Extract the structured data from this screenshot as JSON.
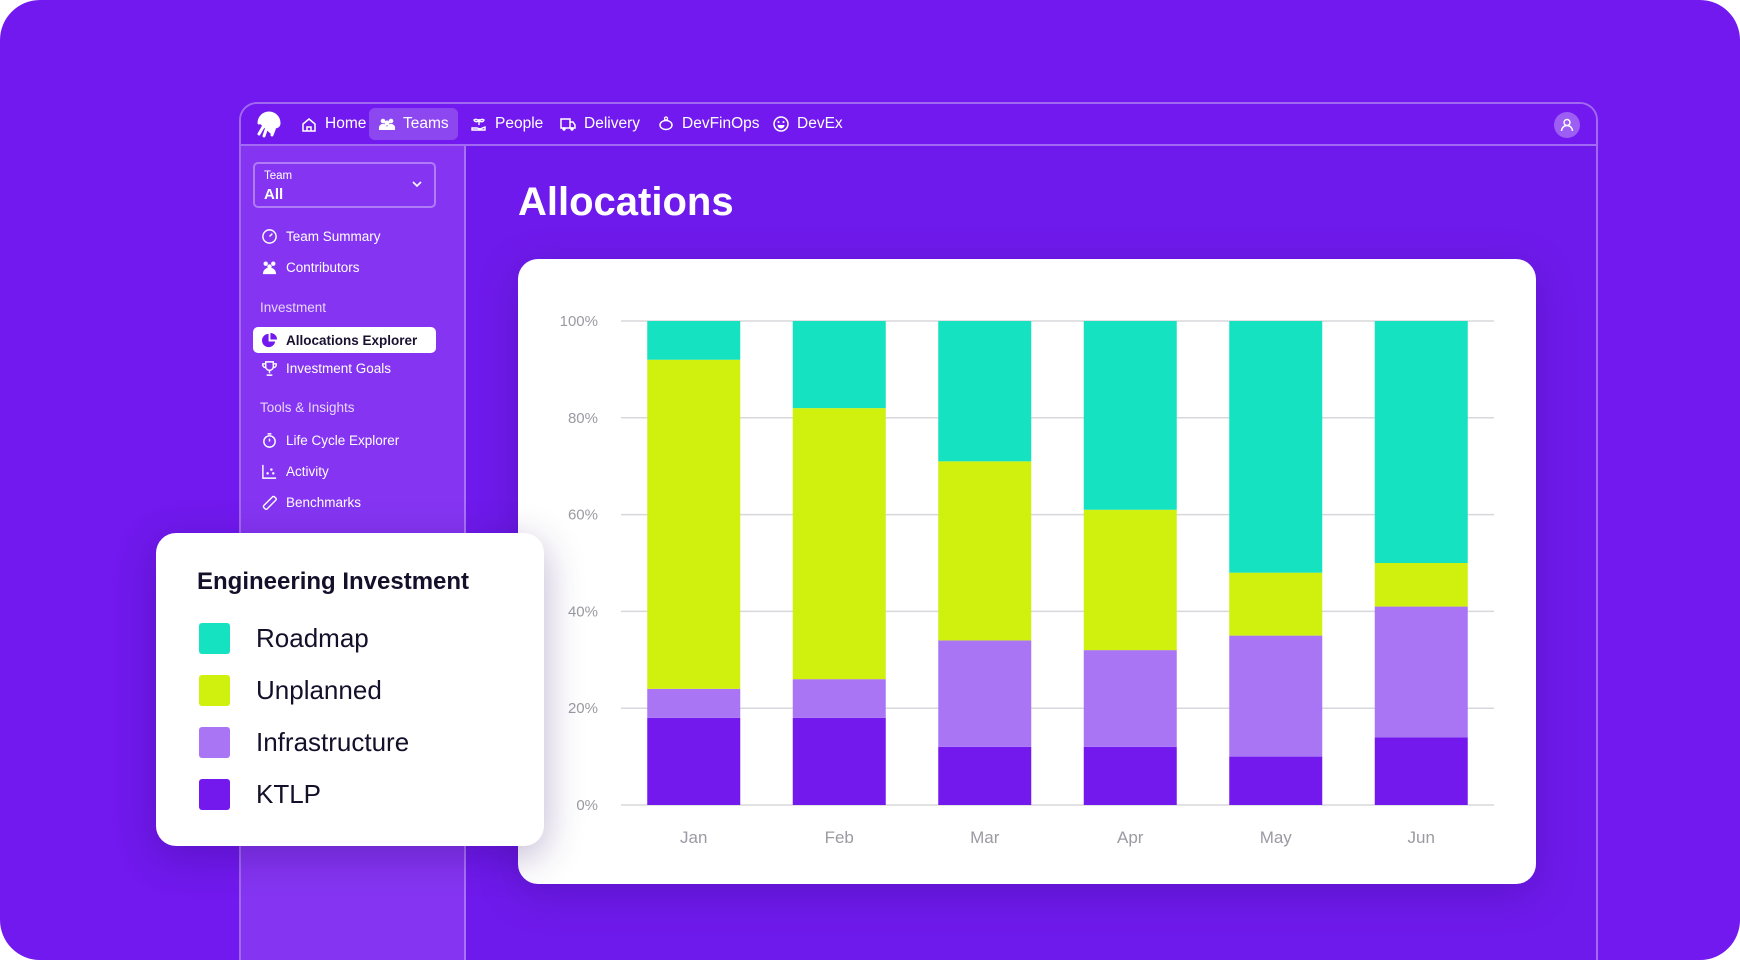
{
  "nav": {
    "items": [
      {
        "label": "Home",
        "icon": "home-icon"
      },
      {
        "label": "Teams",
        "icon": "teams-icon",
        "active": true
      },
      {
        "label": "People",
        "icon": "plant-hand-icon"
      },
      {
        "label": "Delivery",
        "icon": "truck-icon"
      },
      {
        "label": "DevFinOps",
        "icon": "piggy-bank-icon"
      },
      {
        "label": "DevEx",
        "icon": "smiley-icon"
      }
    ]
  },
  "sidebar": {
    "team_select": {
      "label": "Team",
      "value": "All"
    },
    "items": [
      {
        "label": "Team Summary",
        "icon": "gauge-icon"
      },
      {
        "label": "Contributors",
        "icon": "users-icon"
      }
    ],
    "investment": {
      "heading": "Investment",
      "items": [
        {
          "label": "Allocations Explorer",
          "icon": "pie-chart-icon",
          "active": true
        },
        {
          "label": "Investment Goals",
          "icon": "trophy-icon"
        }
      ]
    },
    "tools": {
      "heading": "Tools & Insights",
      "items": [
        {
          "label": "Life Cycle Explorer",
          "icon": "stopwatch-icon"
        },
        {
          "label": "Activity",
          "icon": "scatter-chart-icon"
        },
        {
          "label": "Benchmarks",
          "icon": "ruler-icon"
        }
      ]
    }
  },
  "page": {
    "title": "Allocations"
  },
  "legend": {
    "title": "Engineering Investment"
  },
  "colors": {
    "background": "#7119ee",
    "Roadmap": "#14e2c0",
    "Unplanned": "#d0f00e",
    "Infrastructure": "#a975f5",
    "KTLP": "#7319ee"
  },
  "chart_data": {
    "type": "bar",
    "stacked": true,
    "categories": [
      "Jan",
      "Feb",
      "Mar",
      "Apr",
      "May",
      "Jun"
    ],
    "series": [
      {
        "name": "KTLP",
        "values": [
          18,
          18,
          12,
          12,
          10,
          14
        ]
      },
      {
        "name": "Infrastructure",
        "values": [
          6,
          8,
          22,
          20,
          25,
          27
        ]
      },
      {
        "name": "Unplanned",
        "values": [
          68,
          56,
          37,
          29,
          13,
          9
        ]
      },
      {
        "name": "Roadmap",
        "values": [
          8,
          18,
          29,
          39,
          52,
          50
        ]
      }
    ],
    "legend_order": [
      "Roadmap",
      "Unplanned",
      "Infrastructure",
      "KTLP"
    ],
    "yticks": [
      "0%",
      "20%",
      "40%",
      "60%",
      "80%",
      "100%"
    ],
    "ylim": [
      0,
      100
    ],
    "grid": true,
    "legend_placement": "left overlay"
  }
}
